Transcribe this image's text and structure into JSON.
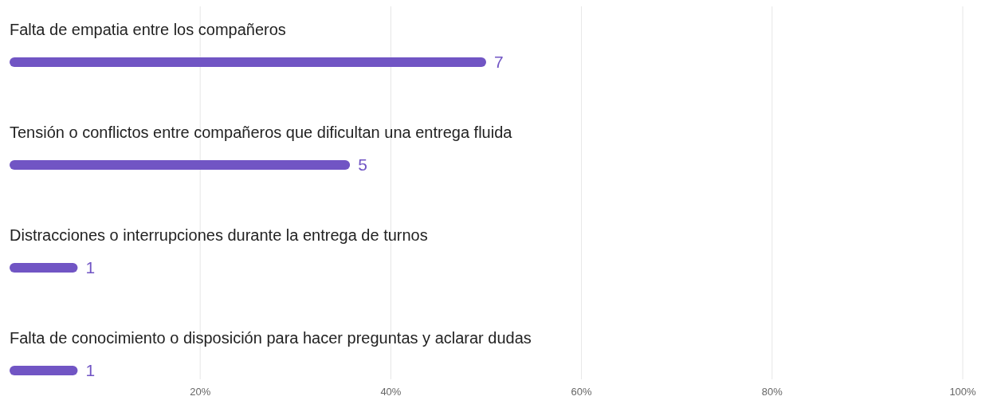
{
  "chart_data": {
    "type": "bar",
    "orientation": "horizontal",
    "categories": [
      "Falta de empatia entre los compañeros",
      "Tensión o conflictos entre compañeros que dificultan una entrega fluida",
      "Distracciones o interrupciones durante la entrega de turnos",
      "Falta de conocimiento o disposición para hacer preguntas y aclarar dudas"
    ],
    "values": [
      7,
      5,
      1,
      1
    ],
    "data_labels": true,
    "color": "#7155c4",
    "xlim": [
      0,
      14
    ],
    "x2lim": [
      0,
      100
    ],
    "x2ticks": [
      {
        "value": 20,
        "label": "20%"
      },
      {
        "value": 40,
        "label": "40%"
      },
      {
        "value": 60,
        "label": "60%"
      },
      {
        "value": 80,
        "label": "80%"
      },
      {
        "value": 100,
        "label": "100%"
      }
    ],
    "grid": "x"
  }
}
